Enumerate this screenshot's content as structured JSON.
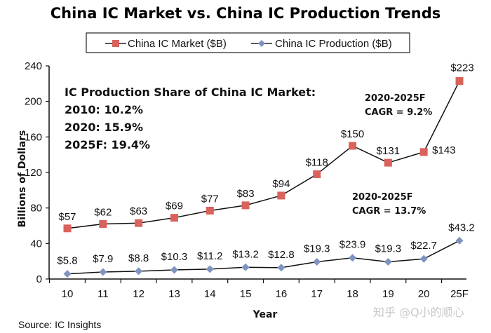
{
  "chart_data": {
    "type": "line",
    "title": "China IC Market vs. China IC Production Trends",
    "xlabel": "Year",
    "ylabel": "Billions of Dollars",
    "categories": [
      "10",
      "11",
      "12",
      "13",
      "14",
      "15",
      "16",
      "17",
      "18",
      "19",
      "20",
      "25F"
    ],
    "ylim": [
      0,
      240
    ],
    "yticks": [
      0,
      40,
      80,
      120,
      160,
      200,
      240
    ],
    "grid": false,
    "legend_position": "top-center",
    "series": [
      {
        "name": "China IC Market ($B)",
        "marker": "square",
        "color": "#d9625c",
        "values": [
          57,
          62,
          63,
          69,
          77,
          83,
          94,
          118,
          150,
          131,
          143,
          223
        ],
        "labels": [
          "$57",
          "$62",
          "$63",
          "$69",
          "$77",
          "$83",
          "$94",
          "$118",
          "$150",
          "$131",
          "$143",
          "$223"
        ]
      },
      {
        "name": "China IC Production ($B)",
        "marker": "diamond",
        "color": "#7f93c0",
        "values": [
          5.8,
          7.9,
          8.8,
          10.3,
          11.2,
          13.2,
          12.8,
          19.3,
          23.9,
          19.3,
          22.7,
          43.2
        ],
        "labels": [
          "$5.8",
          "$7.9",
          "$8.8",
          "$10.3",
          "$11.2",
          "$13.2",
          "$12.8",
          "$19.3",
          "$23.9",
          "$19.3",
          "$22.7",
          "$43.2"
        ]
      }
    ],
    "annotations": {
      "share_box": [
        "IC Production Share of China IC Market:",
        "2010: 10.2%",
        "2020: 15.9%",
        "2025F: 19.4%"
      ],
      "market_cagr": [
        "2020-2025F",
        "CAGR = 9.2%"
      ],
      "production_cagr": [
        "2020-2025F",
        "CAGR = 13.7%"
      ]
    },
    "source": "Source: IC Insights",
    "watermark": "知乎 @Q小的顺心"
  }
}
